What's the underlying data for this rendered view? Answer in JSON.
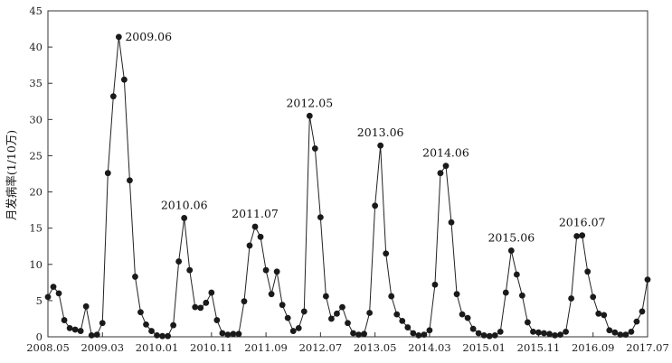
{
  "chart_data": {
    "type": "line",
    "ylabel": "月发病率(1/10万)",
    "xlabel": "",
    "ylim": [
      0,
      45
    ],
    "yticks": [
      0,
      5,
      10,
      15,
      20,
      25,
      30,
      35,
      40,
      45
    ],
    "xrange": [
      "2008.05",
      "2017.07"
    ],
    "xticks": [
      "2008.05",
      "2009.03",
      "2010.01",
      "2010.11",
      "2011.09",
      "2012.07",
      "2013.05",
      "2014.03",
      "2015.01",
      "2015.11",
      "2016.09",
      "2017.07"
    ],
    "grid": false,
    "series": [
      {
        "start": "2008.05",
        "values": [
          5.5,
          6.9,
          6.0,
          2.3,
          1.2,
          1.0,
          0.8,
          4.2,
          0.2,
          0.3,
          1.9,
          22.6,
          33.2,
          41.4,
          35.5,
          21.6,
          8.3,
          3.4,
          1.7,
          0.8,
          0.2,
          0.1,
          0.1,
          1.6,
          10.4,
          16.4,
          9.2,
          4.1,
          4.0,
          4.7,
          6.1,
          2.3,
          0.5,
          0.3,
          0.4,
          0.4,
          4.9,
          12.6,
          15.2,
          13.8,
          9.2,
          5.9,
          9.0,
          4.4,
          2.6,
          0.8,
          1.2,
          3.5,
          30.5,
          26.0,
          16.5,
          5.6,
          2.5,
          3.2,
          4.1,
          1.9,
          0.5,
          0.3,
          0.4,
          3.3,
          18.1,
          26.4,
          11.5,
          5.6,
          3.1,
          2.2,
          1.3,
          0.5,
          0.2,
          0.3,
          0.9,
          7.2,
          22.6,
          23.6,
          15.8,
          5.9,
          3.1,
          2.6,
          1.1,
          0.5,
          0.2,
          0.1,
          0.2,
          0.7,
          6.1,
          11.9,
          8.6,
          5.7,
          2.0,
          0.7,
          0.6,
          0.5,
          0.4,
          0.2,
          0.3,
          0.7,
          5.3,
          13.9,
          14.0,
          9.0,
          5.5,
          3.2,
          3.0,
          0.9,
          0.6,
          0.3,
          0.3,
          0.7,
          2.1,
          3.5,
          7.9
        ]
      }
    ],
    "annotations": [
      {
        "text": "2009.06",
        "x": "2009.06",
        "y": 41.4
      },
      {
        "text": "2010.06",
        "x": "2010.06",
        "y": 16.4
      },
      {
        "text": "2011.07",
        "x": "2011.07",
        "y": 15.2
      },
      {
        "text": "2012.05",
        "x": "2012.05",
        "y": 30.5
      },
      {
        "text": "2013.06",
        "x": "2013.06",
        "y": 26.4
      },
      {
        "text": "2014.06",
        "x": "2014.06",
        "y": 23.6
      },
      {
        "text": "2015.06",
        "x": "2015.06",
        "y": 11.9
      },
      {
        "text": "2016.07",
        "x": "2016.07",
        "y": 14.0
      }
    ]
  }
}
